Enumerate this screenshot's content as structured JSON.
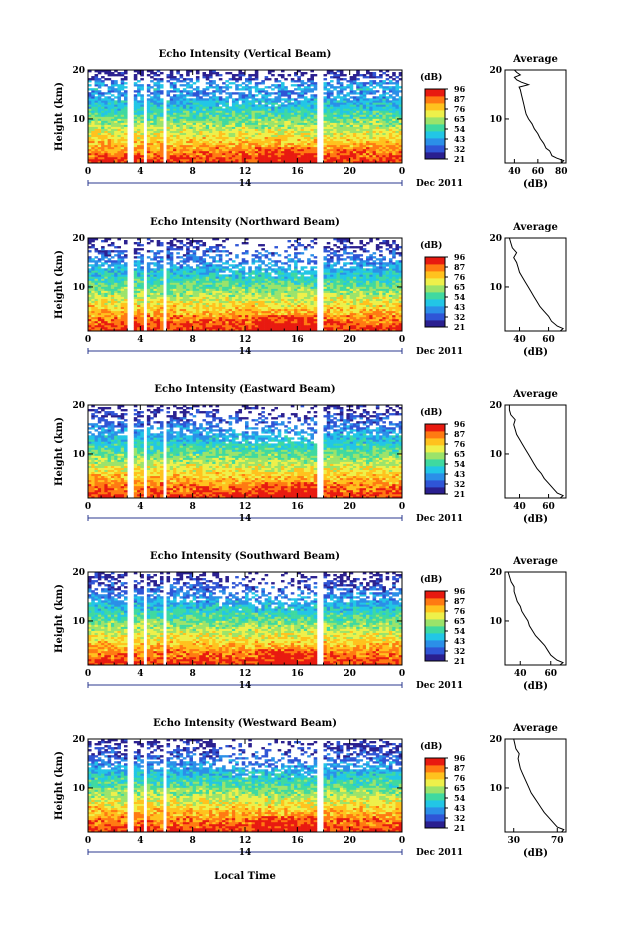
{
  "figure": {
    "date_label": "Dec 2011",
    "day_label": "14",
    "xlabel": "Local Time",
    "colorbar_unit": "(dB)",
    "colorbar_ticks": [
      "96",
      "87",
      "76",
      "65",
      "54",
      "43",
      "32",
      "21"
    ],
    "colormap": [
      "#2a1f8f",
      "#2f55d6",
      "#2b8fe8",
      "#22c6e6",
      "#3fd9a0",
      "#9be36a",
      "#eef04a",
      "#ffc21e",
      "#ff7a12",
      "#e81a10"
    ],
    "panel_count": 5
  },
  "chart_data": [
    {
      "type": "heatmap",
      "title": "Echo Intensity (Vertical Beam)",
      "ylabel": "Height (km)",
      "x_ticks": [
        "0",
        "4",
        "8",
        "12",
        "16",
        "20",
        "0"
      ],
      "y_ticks": [
        "20",
        "10"
      ],
      "xlim": [
        0,
        24
      ],
      "ylim": [
        1,
        20
      ],
      "gaps_hours": [
        [
          3.0,
          3.4
        ],
        [
          4.2,
          4.5
        ],
        [
          5.8,
          6.1
        ],
        [
          17.6,
          17.9
        ]
      ],
      "profile": {
        "title": "Average",
        "xlabel": "(dB)",
        "x_ticks": [
          "40",
          "60",
          "80"
        ],
        "xlim": [
          32,
          84
        ],
        "y_ticks": [
          "20",
          "10"
        ],
        "ylim": [
          1,
          20
        ],
        "height_km": [
          1,
          1.5,
          2,
          2.5,
          3,
          3.5,
          4,
          5,
          6,
          7,
          8,
          9,
          10,
          11,
          12,
          13,
          14,
          15,
          16,
          16.5,
          17,
          17.5,
          18,
          18.5,
          19,
          19.5,
          20
        ],
        "value_db": [
          80,
          82,
          76,
          72,
          71,
          70,
          67,
          65,
          62,
          60,
          57,
          55,
          52,
          50,
          49,
          48,
          47,
          46,
          45,
          44,
          52,
          46,
          42,
          40,
          45,
          42,
          40
        ]
      }
    },
    {
      "type": "heatmap",
      "title": "Echo Intensity (Northward Beam)",
      "ylabel": "Height (km)",
      "x_ticks": [
        "0",
        "4",
        "8",
        "12",
        "16",
        "20",
        "0"
      ],
      "y_ticks": [
        "20",
        "10"
      ],
      "xlim": [
        0,
        24
      ],
      "ylim": [
        1,
        20
      ],
      "gaps_hours": [
        [
          3.0,
          3.4
        ],
        [
          4.2,
          4.5
        ],
        [
          5.8,
          6.1
        ],
        [
          17.6,
          17.9
        ]
      ],
      "profile": {
        "title": "Average",
        "xlabel": "(dB)",
        "x_ticks": [
          "40",
          "60"
        ],
        "xlim": [
          30,
          72
        ],
        "y_ticks": [
          "20",
          "10"
        ],
        "ylim": [
          1,
          20
        ],
        "height_km": [
          1,
          1.5,
          2,
          3,
          4,
          5,
          6,
          7,
          8,
          9,
          10,
          11,
          12,
          13,
          14,
          15,
          16,
          17,
          18,
          19,
          20
        ],
        "value_db": [
          68,
          70,
          66,
          62,
          60,
          57,
          54,
          52,
          50,
          48,
          46,
          44,
          42,
          40,
          39,
          38,
          36,
          38,
          35,
          34,
          33
        ]
      }
    },
    {
      "type": "heatmap",
      "title": "Echo Intensity (Eastward Beam)",
      "ylabel": "Height (km)",
      "x_ticks": [
        "0",
        "4",
        "8",
        "12",
        "16",
        "20",
        "0"
      ],
      "y_ticks": [
        "20",
        "10"
      ],
      "xlim": [
        0,
        24
      ],
      "ylim": [
        1,
        20
      ],
      "gaps_hours": [
        [
          3.0,
          3.4
        ],
        [
          4.2,
          4.5
        ],
        [
          5.8,
          6.1
        ],
        [
          17.6,
          17.9
        ]
      ],
      "profile": {
        "title": "Average",
        "xlabel": "(dB)",
        "x_ticks": [
          "40",
          "60"
        ],
        "xlim": [
          30,
          72
        ],
        "y_ticks": [
          "20",
          "10"
        ],
        "ylim": [
          1,
          20
        ],
        "height_km": [
          1,
          1.5,
          2,
          3,
          4,
          5,
          6,
          7,
          8,
          9,
          10,
          11,
          12,
          13,
          14,
          15,
          16,
          17,
          18,
          19,
          20
        ],
        "value_db": [
          68,
          70,
          66,
          63,
          60,
          57,
          55,
          52,
          50,
          48,
          46,
          44,
          42,
          40,
          38,
          37,
          36,
          37,
          34,
          33,
          33
        ]
      }
    },
    {
      "type": "heatmap",
      "title": "Echo Intensity (Southward Beam)",
      "ylabel": "Height (km)",
      "x_ticks": [
        "0",
        "4",
        "8",
        "12",
        "16",
        "20",
        "0"
      ],
      "y_ticks": [
        "20",
        "10"
      ],
      "xlim": [
        0,
        24
      ],
      "ylim": [
        1,
        20
      ],
      "gaps_hours": [
        [
          3.0,
          3.4
        ],
        [
          4.2,
          4.5
        ],
        [
          5.8,
          6.1
        ],
        [
          17.6,
          17.9
        ]
      ],
      "profile": {
        "title": "Average",
        "xlabel": "(dB)",
        "x_ticks": [
          "40",
          "60"
        ],
        "xlim": [
          30,
          70
        ],
        "y_ticks": [
          "20",
          "10"
        ],
        "ylim": [
          1,
          20
        ],
        "height_km": [
          1,
          1.5,
          2,
          3,
          4,
          5,
          6,
          7,
          8,
          9,
          10,
          11,
          12,
          13,
          14,
          15,
          16,
          17,
          18,
          19,
          20
        ],
        "value_db": [
          66,
          68,
          64,
          60,
          58,
          56,
          53,
          50,
          48,
          46,
          45,
          43,
          41,
          40,
          38,
          37,
          36,
          36,
          34,
          33,
          32
        ]
      }
    },
    {
      "type": "heatmap",
      "title": "Echo Intensity (Westward Beam)",
      "ylabel": "Height (km)",
      "x_ticks": [
        "0",
        "4",
        "8",
        "12",
        "16",
        "20",
        "0"
      ],
      "y_ticks": [
        "20",
        "10"
      ],
      "xlim": [
        0,
        24
      ],
      "ylim": [
        1,
        20
      ],
      "gaps_hours": [
        [
          3.0,
          3.4
        ],
        [
          4.2,
          4.5
        ],
        [
          5.8,
          6.1
        ],
        [
          17.6,
          17.9
        ]
      ],
      "profile": {
        "title": "Average",
        "xlabel": "(dB)",
        "x_ticks": [
          "30",
          "70"
        ],
        "xlim": [
          22,
          78
        ],
        "y_ticks": [
          "20",
          "10"
        ],
        "ylim": [
          1,
          20
        ],
        "height_km": [
          1,
          1.5,
          2,
          3,
          4,
          5,
          6,
          7,
          8,
          9,
          10,
          11,
          12,
          13,
          14,
          15,
          16,
          17,
          18,
          19,
          20
        ],
        "value_db": [
          74,
          76,
          70,
          66,
          62,
          58,
          55,
          52,
          49,
          46,
          44,
          42,
          40,
          38,
          36,
          35,
          34,
          35,
          32,
          31,
          30
        ]
      }
    }
  ]
}
